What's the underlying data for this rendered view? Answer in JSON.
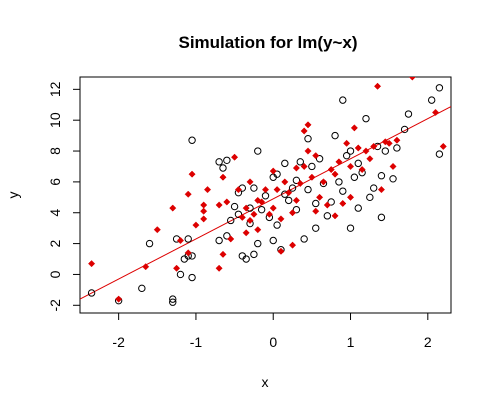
{
  "chart_data": {
    "type": "scatter",
    "title": "Simulation for lm(y~x)",
    "xlabel": "x",
    "ylabel": "y",
    "xlim": [
      -2.5,
      2.3
    ],
    "ylim": [
      -2.5,
      12.8
    ],
    "x_ticks": [
      -2,
      -1,
      0,
      1,
      2
    ],
    "y_ticks": [
      -2,
      0,
      2,
      4,
      6,
      8,
      10,
      12
    ],
    "grid": false,
    "legend": "none",
    "series": [
      {
        "marker": "open-circle",
        "color": "#000000",
        "points": [
          [
            -2.35,
            -1.2
          ],
          [
            -2.0,
            -1.7
          ],
          [
            -1.7,
            -0.9
          ],
          [
            -1.6,
            2.0
          ],
          [
            -1.3,
            -1.6
          ],
          [
            -1.3,
            -1.8
          ],
          [
            -1.25,
            2.3
          ],
          [
            -1.2,
            0.0
          ],
          [
            -1.15,
            1.0
          ],
          [
            -1.1,
            2.3
          ],
          [
            -1.1,
            1.2
          ],
          [
            -1.05,
            -0.2
          ],
          [
            -1.05,
            1.2
          ],
          [
            -1.05,
            8.7
          ],
          [
            -0.7,
            7.3
          ],
          [
            -0.7,
            2.2
          ],
          [
            -0.65,
            6.9
          ],
          [
            -0.6,
            7.4
          ],
          [
            -0.6,
            2.5
          ],
          [
            -0.55,
            3.5
          ],
          [
            -0.5,
            4.4
          ],
          [
            -0.45,
            3.9
          ],
          [
            -0.45,
            5.3
          ],
          [
            -0.4,
            5.6
          ],
          [
            -0.4,
            1.2
          ],
          [
            -0.35,
            1.0
          ],
          [
            -0.3,
            3.3
          ],
          [
            -0.3,
            4.3
          ],
          [
            -0.25,
            1.3
          ],
          [
            -0.25,
            5.6
          ],
          [
            -0.2,
            2.0
          ],
          [
            -0.2,
            8.0
          ],
          [
            -0.15,
            4.2
          ],
          [
            -0.1,
            5.1
          ],
          [
            -0.05,
            3.7
          ],
          [
            0.0,
            2.2
          ],
          [
            0.0,
            6.3
          ],
          [
            0.05,
            3.2
          ],
          [
            0.05,
            6.5
          ],
          [
            0.1,
            1.6
          ],
          [
            0.15,
            5.2
          ],
          [
            0.15,
            7.2
          ],
          [
            0.2,
            4.8
          ],
          [
            0.25,
            5.6
          ],
          [
            0.3,
            6.1
          ],
          [
            0.3,
            4.2
          ],
          [
            0.35,
            7.3
          ],
          [
            0.4,
            2.3
          ],
          [
            0.45,
            8.8
          ],
          [
            0.45,
            5.5
          ],
          [
            0.5,
            7.0
          ],
          [
            0.55,
            3.0
          ],
          [
            0.55,
            4.6
          ],
          [
            0.6,
            7.5
          ],
          [
            0.65,
            5.9
          ],
          [
            0.7,
            3.8
          ],
          [
            0.75,
            4.7
          ],
          [
            0.8,
            9.0
          ],
          [
            0.85,
            6.0
          ],
          [
            0.9,
            5.4
          ],
          [
            0.9,
            11.3
          ],
          [
            0.95,
            7.7
          ],
          [
            1.0,
            3.0
          ],
          [
            1.0,
            8.0
          ],
          [
            1.05,
            6.3
          ],
          [
            1.1,
            4.3
          ],
          [
            1.1,
            7.2
          ],
          [
            1.15,
            6.6
          ],
          [
            1.2,
            10.1
          ],
          [
            1.25,
            5.0
          ],
          [
            1.3,
            5.6
          ],
          [
            1.35,
            8.3
          ],
          [
            1.4,
            3.7
          ],
          [
            1.4,
            6.4
          ],
          [
            1.45,
            8.0
          ],
          [
            1.55,
            6.2
          ],
          [
            1.6,
            8.2
          ],
          [
            1.7,
            9.4
          ],
          [
            1.75,
            10.4
          ],
          [
            2.05,
            11.3
          ],
          [
            2.15,
            12.1
          ],
          [
            2.15,
            7.8
          ]
        ]
      },
      {
        "marker": "filled-diamond",
        "color": "#dd0000",
        "points": [
          [
            -2.35,
            0.7
          ],
          [
            -2.0,
            -1.6
          ],
          [
            -1.65,
            0.5
          ],
          [
            -1.5,
            2.9
          ],
          [
            -1.3,
            4.3
          ],
          [
            -1.25,
            0.4
          ],
          [
            -1.2,
            2.2
          ],
          [
            -1.1,
            5.2
          ],
          [
            -1.1,
            1.4
          ],
          [
            -1.05,
            6.5
          ],
          [
            -1.0,
            3.2
          ],
          [
            -0.9,
            4.1
          ],
          [
            -0.9,
            4.5
          ],
          [
            -0.9,
            3.6
          ],
          [
            -0.85,
            5.5
          ],
          [
            -0.7,
            0.4
          ],
          [
            -0.7,
            4.5
          ],
          [
            -0.65,
            1.3
          ],
          [
            -0.65,
            6.3
          ],
          [
            -0.6,
            4.7
          ],
          [
            -0.55,
            2.3
          ],
          [
            -0.5,
            7.6
          ],
          [
            -0.45,
            5.5
          ],
          [
            -0.4,
            3.7
          ],
          [
            -0.35,
            4.3
          ],
          [
            -0.35,
            2.7
          ],
          [
            -0.3,
            3.5
          ],
          [
            -0.3,
            6.0
          ],
          [
            -0.25,
            3.9
          ],
          [
            -0.2,
            4.8
          ],
          [
            -0.2,
            2.9
          ],
          [
            -0.15,
            4.7
          ],
          [
            -0.1,
            5.5
          ],
          [
            -0.05,
            3.9
          ],
          [
            0.0,
            6.7
          ],
          [
            0.0,
            4.3
          ],
          [
            0.05,
            5.5
          ],
          [
            0.1,
            3.6
          ],
          [
            0.1,
            1.5
          ],
          [
            0.15,
            6.0
          ],
          [
            0.2,
            5.3
          ],
          [
            0.25,
            4.0
          ],
          [
            0.25,
            1.9
          ],
          [
            0.3,
            4.8
          ],
          [
            0.3,
            6.9
          ],
          [
            0.35,
            5.9
          ],
          [
            0.4,
            7.0
          ],
          [
            0.4,
            9.3
          ],
          [
            0.45,
            8.0
          ],
          [
            0.45,
            9.7
          ],
          [
            0.5,
            6.3
          ],
          [
            0.55,
            4.1
          ],
          [
            0.55,
            7.7
          ],
          [
            0.6,
            5.0
          ],
          [
            0.65,
            6.0
          ],
          [
            0.7,
            4.5
          ],
          [
            0.75,
            6.8
          ],
          [
            0.8,
            3.8
          ],
          [
            0.8,
            6.5
          ],
          [
            0.85,
            7.3
          ],
          [
            0.9,
            4.6
          ],
          [
            0.95,
            8.5
          ],
          [
            1.0,
            5.0
          ],
          [
            1.0,
            7.0
          ],
          [
            1.05,
            9.5
          ],
          [
            1.1,
            8.2
          ],
          [
            1.15,
            6.8
          ],
          [
            1.2,
            8.0
          ],
          [
            1.25,
            7.5
          ],
          [
            1.3,
            8.3
          ],
          [
            1.35,
            12.2
          ],
          [
            1.4,
            5.5
          ],
          [
            1.45,
            8.6
          ],
          [
            1.5,
            8.5
          ],
          [
            1.55,
            7.0
          ],
          [
            1.6,
            8.7
          ],
          [
            1.8,
            12.8
          ],
          [
            2.1,
            10.5
          ],
          [
            2.2,
            8.3
          ]
        ]
      }
    ],
    "fit_line": {
      "color": "#dd0000",
      "intercept": 4.9,
      "slope": 2.6
    }
  }
}
